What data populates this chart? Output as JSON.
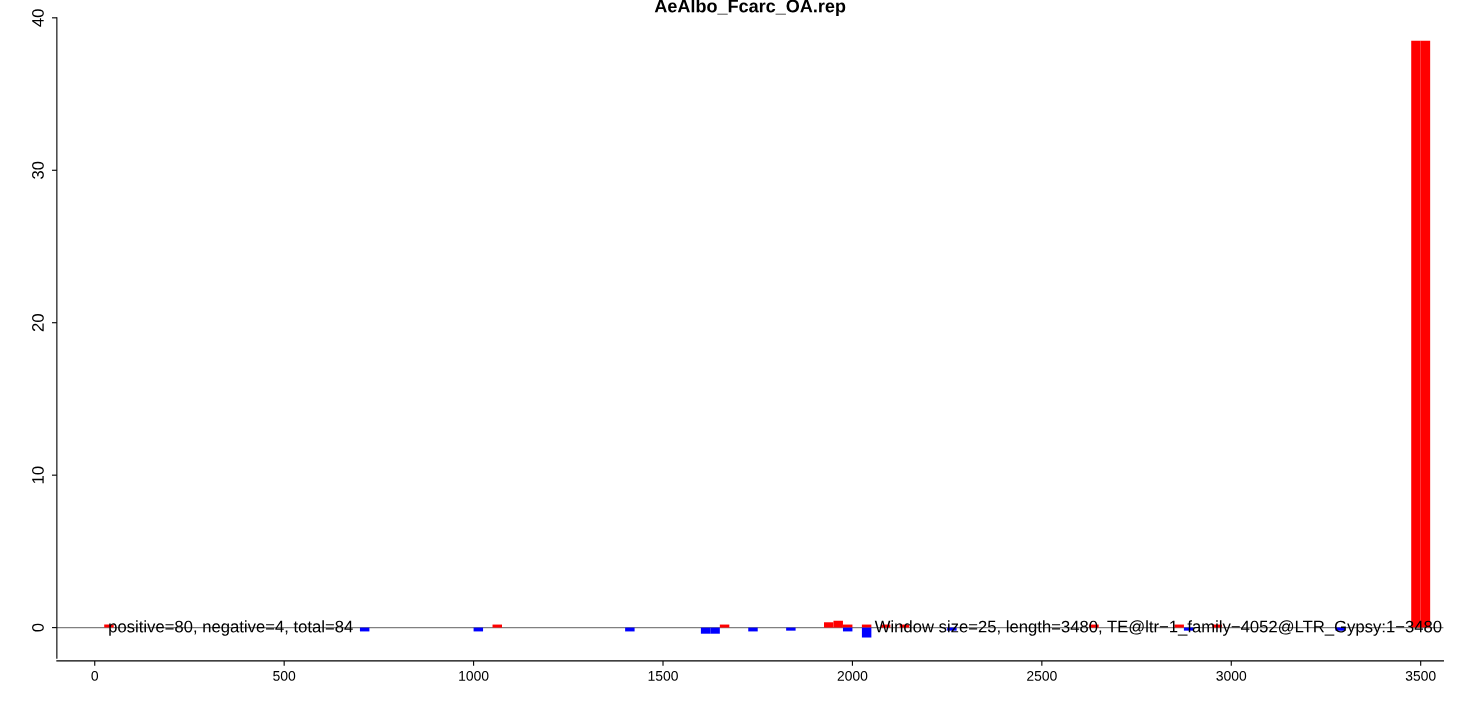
{
  "chart_data": {
    "type": "bar",
    "title": "AeAlbo_Fcarc_OA.rep",
    "x": [
      37.5,
      712.5,
      1012.5,
      1062.5,
      1412.5,
      1612.5,
      1637.5,
      1662.5,
      1737.5,
      1837.5,
      1937.5,
      1962.5,
      1987.5,
      2037.5,
      2087.5,
      2137.5,
      2262.5,
      2637.5,
      2862.5,
      2887.5,
      2962.5,
      3287.5,
      3487.5,
      3512.5
    ],
    "series": [
      {
        "color": "#ff0000",
        "values": [
          0.2,
          null,
          null,
          0.2,
          null,
          null,
          null,
          0.2,
          null,
          null,
          0.35,
          0.45,
          0.2,
          0.2,
          0.2,
          0.2,
          null,
          0.2,
          0.2,
          null,
          0.2,
          null,
          38.5,
          38.5
        ]
      },
      {
        "color": "#0000ff",
        "values": [
          null,
          -0.25,
          -0.25,
          null,
          -0.25,
          -0.4,
          -0.4,
          null,
          -0.25,
          -0.2,
          null,
          null,
          -0.25,
          -0.65,
          null,
          null,
          -0.2,
          null,
          null,
          -0.2,
          null,
          -0.2,
          null,
          null
        ]
      }
    ],
    "xlim": [
      -100,
      3560
    ],
    "ylim": [
      -2,
      40
    ],
    "xticks": [
      0,
      500,
      1000,
      1500,
      2000,
      2500,
      3000,
      3500
    ],
    "yticks": [
      0,
      10,
      20,
      30,
      40
    ],
    "ref_lines": [
      {
        "axis": "y",
        "value": 0,
        "color": "#808080"
      }
    ],
    "annotations": [
      "positive=80, negative=4, total=84",
      "Window size=25, length=3480, TE@ltr−1_family−4052@LTR_Gypsy:1−3480"
    ],
    "grid": false,
    "legend": false
  }
}
